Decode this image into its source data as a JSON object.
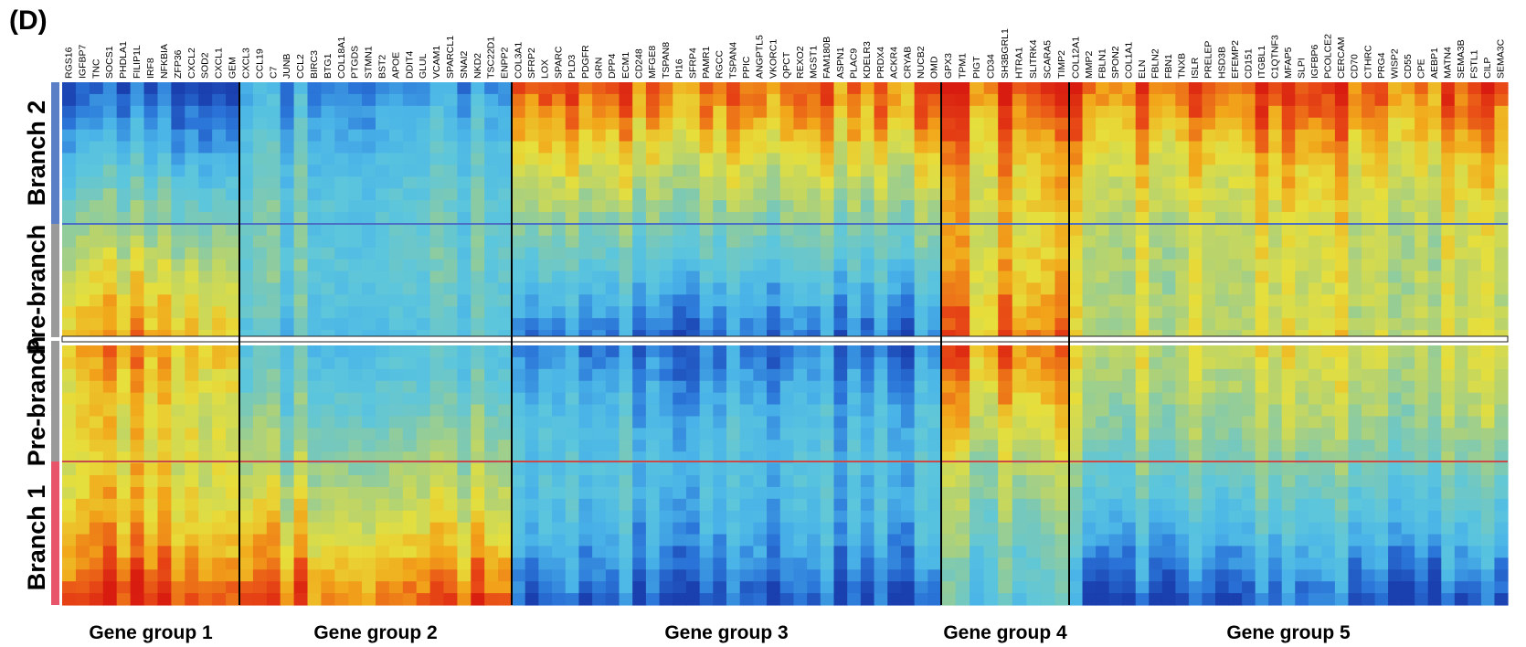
{
  "panel_label": "(D)",
  "chart_data": {
    "type": "heatmap",
    "row_sections": [
      {
        "name": "Branch 2",
        "color": "#5b7fc7"
      },
      {
        "name": "Pre-branch",
        "color": "#9a9a9a"
      },
      {
        "name": "Pre-branch",
        "color": "#9a9a9a"
      },
      {
        "name": "Branch 1",
        "color": "#e8556a"
      }
    ],
    "gene_groups": [
      {
        "name": "Gene group 1",
        "genes": [
          "RGS16",
          "IGFBP7",
          "TNC",
          "SOCS1",
          "PHDLA1",
          "FILIP1L",
          "IRF8",
          "NFKBIA",
          "ZFP36",
          "CXCL2",
          "SOD2",
          "CXCL1",
          "GEM"
        ]
      },
      {
        "name": "Gene group 2",
        "genes": [
          "CXCL3",
          "CCL19",
          "C7",
          "JUNB",
          "CCL2",
          "BIRC3",
          "BTG1",
          "COL18A1",
          "PTGDS",
          "STMN1",
          "BST2",
          "APOE",
          "DDIT4",
          "GLUL",
          "VCAM1",
          "SPARCL1",
          "SNAI2",
          "NKD2",
          "TSC22D1",
          "ENPP2"
        ]
      },
      {
        "name": "Gene group 3",
        "genes": [
          "COL3A1",
          "SFRP2",
          "LOX",
          "SPARC",
          "PLD3",
          "PDGFR",
          "GRN",
          "DPP4",
          "ECM1",
          "CD248",
          "MFGE8",
          "TSPAN8",
          "PI16",
          "SFRP4",
          "PAMR1",
          "RGCC",
          "TSPAN4",
          "PPIC",
          "ANGPTL5",
          "VKORC1",
          "QPCT",
          "REXO2",
          "MGST1",
          "FAM180B",
          "ASPN1",
          "PLAC9",
          "KDELR3",
          "PRDX4",
          "ACKR4",
          "CRYAB",
          "NUCB2",
          "OMD"
        ]
      },
      {
        "name": "Gene group 4",
        "genes": [
          "GPX3",
          "TPM1",
          "PIGT",
          "CD34",
          "SH3BGRL1",
          "HTRA1",
          "SLITRK4",
          "SCARA5",
          "TIMP2"
        ]
      },
      {
        "name": "Gene group 5",
        "genes": [
          "COL12A1",
          "MMP2",
          "FBLN1",
          "SPON2",
          "COL1A1",
          "ELN",
          "FBLN2",
          "FBN1",
          "TNXB",
          "ISLR",
          "PRELEP",
          "HSD3B",
          "EFEMP2",
          "CD151",
          "ITGBL1",
          "C1QTNF3",
          "MFAP5",
          "SLPI",
          "IGFBP6",
          "PCOLCE2",
          "CERCAM",
          "CD70",
          "CTHRC",
          "PRG4",
          "WISP2",
          "CD55",
          "CPE",
          "AEBP1",
          "MATN4",
          "SEMA3B",
          "FSTL1",
          "CILP",
          "SEMA3C"
        ]
      }
    ],
    "colorscale": [
      "#1a3fae",
      "#2a74d8",
      "#4ab4e8",
      "#5cc6dd",
      "#7ec9b2",
      "#b7d36e",
      "#e6df3c",
      "#f2a61a",
      "#e84a16",
      "#d81c10"
    ],
    "section_line_colors": [
      "#4a6fc4",
      "#c84a4a"
    ],
    "group_profiles": {
      "g1": {
        "b2_top": -0.9,
        "pre_mid": 0.55,
        "b1_bottom": 0.85
      },
      "g2": {
        "b2_top": -0.6,
        "pre_mid": -0.35,
        "b1_bottom": 0.75
      },
      "g3": {
        "b2_top": 0.75,
        "pre_mid": -0.75,
        "b1_bottom": -0.85
      },
      "g4": {
        "b2_top": 0.85,
        "pre_mid": 0.7,
        "b1_bottom": -0.3
      },
      "g5": {
        "b2_top": 0.8,
        "pre_mid": 0.25,
        "b1_bottom": -0.85
      }
    }
  }
}
